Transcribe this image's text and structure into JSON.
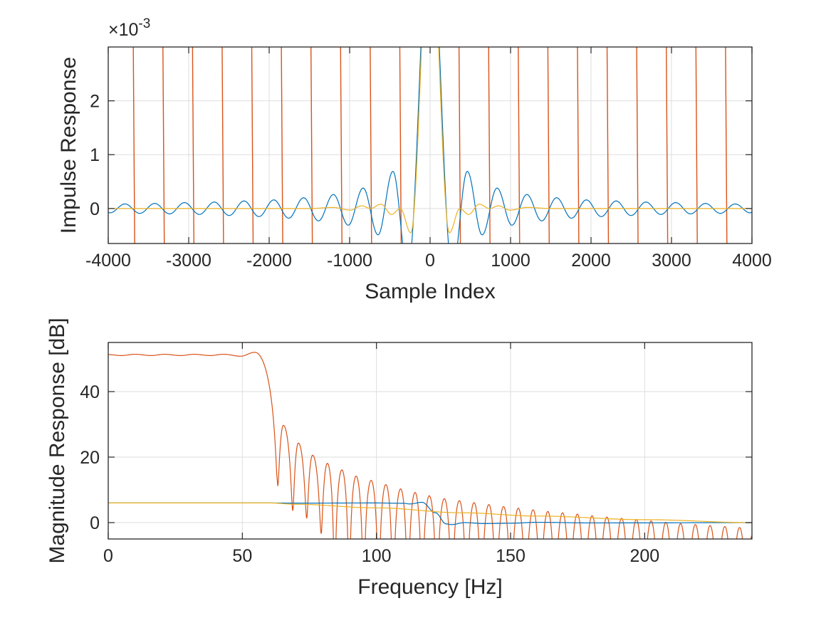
{
  "colors": {
    "series1": "#0072BD",
    "series2": "#D95319",
    "series3": "#EDB120",
    "grid": "#dedede",
    "axis": "#262626"
  },
  "chart_data": [
    {
      "type": "line",
      "xlabel": "Sample Index",
      "ylabel": "Impulse Response",
      "y_exponent_label": "×10",
      "y_exponent": "-3",
      "xlim": [
        -4000,
        4000
      ],
      "ylim": [
        -0.65,
        3.0
      ],
      "xticks": [
        -4000,
        -3000,
        -2000,
        -1000,
        0,
        1000,
        2000,
        3000,
        4000
      ],
      "xtick_labels": [
        "-4000",
        "-3000",
        "-2000",
        "-1000",
        "0",
        "1000",
        "2000",
        "3000",
        "4000"
      ],
      "yticks": [
        0,
        1,
        2
      ],
      "ytick_labels": [
        "0",
        "1",
        "2"
      ],
      "grid": true,
      "series": [
        {
          "color": "#D95319",
          "style": "large oscillation exceeding axis limits",
          "x_crossings": [
            -3680,
            -3312,
            -2944,
            -2576,
            -2208,
            -1840,
            -1472,
            -1104,
            -736,
            -368,
            368,
            736,
            1104,
            1472,
            1840,
            2208,
            2576,
            2944,
            3312,
            3680
          ]
        },
        {
          "color": "#0072BD",
          "x": [
            -4000,
            -3977,
            -3792,
            -3607,
            -3422,
            -3237,
            -3052,
            -2867,
            -2682,
            -2497,
            -2312,
            -2127,
            -1942,
            -1757,
            -1572,
            -1387,
            -1202,
            -1017,
            -832,
            -647,
            -462,
            -277,
            0,
            277,
            462,
            647,
            832,
            1017,
            1202,
            1387,
            1572,
            1757,
            1942,
            2127,
            2312,
            2497,
            2682,
            2867,
            3052,
            3237,
            3422,
            3607,
            3792,
            3977,
            4000
          ],
          "y": [
            -0.07,
            -0.08,
            0.085,
            -0.09,
            0.095,
            -0.1,
            0.11,
            -0.11,
            0.12,
            -0.13,
            0.14,
            -0.15,
            0.16,
            -0.18,
            0.2,
            -0.23,
            0.26,
            -0.31,
            0.38,
            -0.49,
            0.69,
            -1.15,
            5.4,
            -1.15,
            0.69,
            -0.49,
            0.38,
            -0.31,
            0.26,
            -0.23,
            0.2,
            -0.18,
            0.16,
            -0.15,
            0.14,
            -0.13,
            0.12,
            -0.11,
            0.11,
            -0.1,
            0.095,
            -0.09,
            0.085,
            -0.08,
            -0.07
          ]
        },
        {
          "color": "#EDB120",
          "x": [
            -4000,
            -1500,
            -1207,
            -991,
            -850,
            -740,
            -611,
            -478,
            -370,
            -240,
            0,
            240,
            370,
            478,
            611,
            740,
            850,
            991,
            1207,
            1500,
            4000
          ],
          "y": [
            0,
            0,
            0.02,
            -0.03,
            0.05,
            0,
            0.08,
            -0.11,
            0,
            -0.45,
            5.4,
            -0.45,
            0,
            -0.11,
            0.08,
            0,
            0.05,
            -0.03,
            0.02,
            0,
            0
          ]
        }
      ]
    },
    {
      "type": "line",
      "xlabel": "Frequency [Hz]",
      "ylabel": "Magnitude Response [dB]",
      "xlim": [
        0,
        240
      ],
      "ylim": [
        -5,
        55
      ],
      "xticks": [
        0,
        50,
        100,
        150,
        200
      ],
      "xtick_labels": [
        "0",
        "50",
        "100",
        "150",
        "200"
      ],
      "yticks": [
        0,
        20,
        40
      ],
      "ytick_labels": [
        "0",
        "20",
        "40"
      ],
      "grid": true,
      "series": [
        {
          "color": "#D95319",
          "points": [
            [
              0,
              51.3
            ],
            [
              5,
              51.0
            ],
            [
              10,
              51.4
            ],
            [
              16,
              51.0
            ],
            [
              21,
              51.4
            ],
            [
              27,
              51.0
            ],
            [
              32,
              51.4
            ],
            [
              38,
              51.0
            ],
            [
              43,
              51.4
            ],
            [
              49.4,
              50.8
            ],
            [
              54.7,
              52.0
            ],
            [
              63.2,
              11.2
            ],
            [
              65.3,
              29.7
            ],
            [
              68.8,
              3.6
            ],
            [
              70.9,
              24.3
            ],
            [
              74,
              1.3
            ],
            [
              76.2,
              20.6
            ],
            [
              79.4,
              -3.4
            ],
            [
              81.7,
              18.1
            ],
            [
              84.4,
              -40
            ],
            [
              87.1,
              16.1
            ],
            [
              89.8,
              -40
            ],
            [
              92.4,
              14.2
            ],
            [
              95.2,
              -40
            ],
            [
              98,
              12.9
            ],
            [
              100.8,
              -40
            ],
            [
              103.5,
              11.6
            ],
            [
              106.2,
              -40
            ],
            [
              109,
              10.3
            ],
            [
              111.7,
              -40
            ],
            [
              114.4,
              9.2
            ],
            [
              117,
              -40
            ],
            [
              119.7,
              8.2
            ],
            [
              122.5,
              -40
            ],
            [
              125.3,
              7.3
            ],
            [
              128.1,
              -40
            ],
            [
              130.9,
              6.7
            ],
            [
              133.6,
              -40
            ],
            [
              136.4,
              6.1
            ],
            [
              139.1,
              -40
            ],
            [
              141.9,
              5.5
            ],
            [
              144.6,
              -40
            ],
            [
              147.4,
              4.9
            ],
            [
              150.1,
              -40
            ],
            [
              152.9,
              4.4
            ],
            [
              155.6,
              -40
            ],
            [
              158.4,
              3.9
            ],
            [
              161.1,
              -40
            ],
            [
              163.9,
              3.4
            ],
            [
              166.6,
              -40
            ],
            [
              169.4,
              3.0
            ],
            [
              172.1,
              -40
            ],
            [
              174.9,
              2.6
            ],
            [
              177.6,
              -40
            ],
            [
              180.4,
              2.1
            ],
            [
              183.1,
              -40
            ],
            [
              185.9,
              1.7
            ],
            [
              188.6,
              -40
            ],
            [
              191.4,
              1.3
            ],
            [
              194.1,
              -40
            ],
            [
              196.9,
              0.9
            ],
            [
              199.6,
              -40
            ],
            [
              202.4,
              0.5
            ],
            [
              205.1,
              -40
            ],
            [
              207.9,
              0.1
            ],
            [
              210.6,
              -40
            ],
            [
              213.4,
              -0.3
            ],
            [
              216.1,
              -40
            ],
            [
              218.9,
              -0.6
            ],
            [
              221.6,
              -40
            ],
            [
              224.4,
              -0.9
            ],
            [
              227.1,
              -40
            ],
            [
              229.9,
              -1.2
            ],
            [
              232.6,
              -40
            ],
            [
              235.4,
              -1.5
            ],
            [
              238.1,
              -40
            ],
            [
              240,
              -4
            ]
          ]
        },
        {
          "color": "#0072BD",
          "points": [
            [
              0,
              6
            ],
            [
              60,
              6
            ],
            [
              70,
              5.95
            ],
            [
              100,
              6
            ],
            [
              110,
              5.9
            ],
            [
              112.5,
              5.7
            ],
            [
              117,
              6.2
            ],
            [
              122,
              3
            ],
            [
              126,
              -0.4
            ],
            [
              128,
              -0.6
            ],
            [
              133,
              0
            ],
            [
              140,
              -0.3
            ],
            [
              150,
              -0.2
            ],
            [
              160,
              0.1
            ],
            [
              180,
              -0.1
            ],
            [
              240,
              0
            ]
          ]
        },
        {
          "color": "#EDB120",
          "points": [
            [
              0,
              6
            ],
            [
              60,
              6
            ],
            [
              70,
              5.6
            ],
            [
              100,
              4.5
            ],
            [
              132,
              3.0
            ],
            [
              160,
              2.0
            ],
            [
              200,
              0.9
            ],
            [
              240,
              0
            ]
          ]
        }
      ]
    }
  ]
}
